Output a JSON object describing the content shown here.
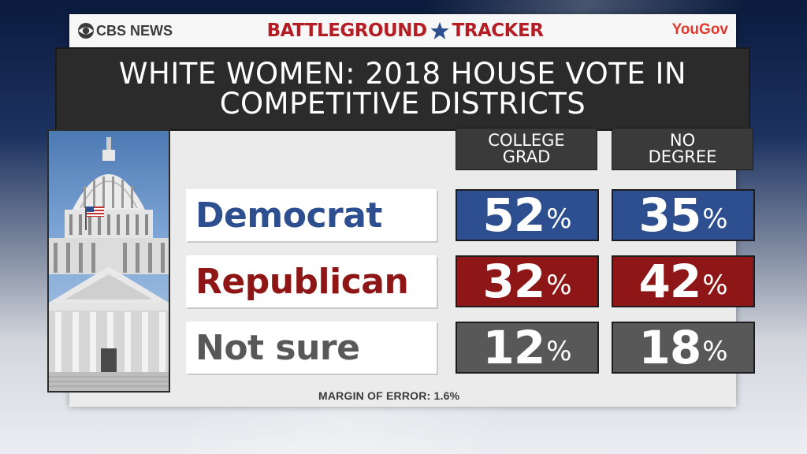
{
  "header": {
    "left_brand": "CBS NEWS",
    "center_brand_left": "BATTLEGROUND",
    "center_brand_right": "TRACKER",
    "right_brand": "YouGov"
  },
  "colors": {
    "democrat": "#2d4e8f",
    "republican": "#8e1616",
    "not_sure": "#585858",
    "brand_red": "#b51d24"
  },
  "chart_data": {
    "type": "table",
    "title": "WHITE WOMEN: 2018 HOUSE VOTE IN COMPETITIVE DISTRICTS",
    "columns": [
      "COLLEGE GRAD",
      "NO DEGREE"
    ],
    "unit": "%",
    "rows": [
      {
        "label": "Democrat",
        "values": [
          52,
          35
        ]
      },
      {
        "label": "Republican",
        "values": [
          32,
          42
        ]
      },
      {
        "label": "Not sure",
        "values": [
          12,
          18
        ]
      }
    ],
    "footnote": "MARGIN OF ERROR: 1.6%"
  }
}
